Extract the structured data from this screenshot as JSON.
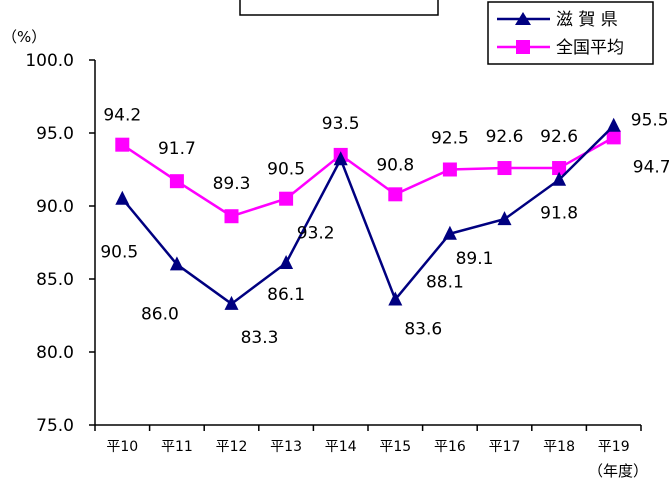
{
  "chart_data": {
    "type": "line",
    "unit_label": "（%）",
    "x_unit_label": "（年度）",
    "title_box_text": "",
    "categories": [
      "平10",
      "平11",
      "平12",
      "平13",
      "平14",
      "平15",
      "平16",
      "平17",
      "平18",
      "平19"
    ],
    "ylim": [
      75.0,
      100.0
    ],
    "yticks": [
      "100.0",
      "95.0",
      "90.0",
      "85.0",
      "80.0",
      "75.0"
    ],
    "grid": false,
    "legend_position": "top-right",
    "series": [
      {
        "name": "滋 賀 県",
        "marker": "triangle",
        "color": "#000080",
        "values": [
          90.5,
          86.0,
          83.3,
          86.1,
          93.2,
          83.6,
          88.1,
          89.1,
          91.8,
          95.5
        ],
        "labels": [
          "90.5",
          "86.0",
          "83.3",
          "86.1",
          "93.2",
          "83.6",
          "88.1",
          "89.1",
          "91.8",
          "95.5"
        ]
      },
      {
        "name": "全国平均",
        "marker": "square",
        "color": "#ff00ff",
        "values": [
          94.2,
          91.7,
          89.3,
          90.5,
          93.5,
          90.8,
          92.5,
          92.6,
          92.6,
          94.7
        ],
        "labels": [
          "94.2",
          "91.7",
          "89.3",
          "90.5",
          "93.5",
          "90.8",
          "92.5",
          "92.6",
          "92.6",
          "94.7"
        ]
      }
    ]
  }
}
